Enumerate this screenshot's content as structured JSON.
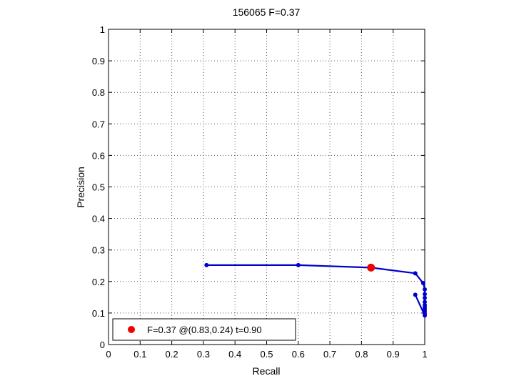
{
  "chart_data": {
    "type": "line",
    "title": "156065 F=0.37",
    "xlabel": "Recall",
    "ylabel": "Precision",
    "xlim": [
      0,
      1
    ],
    "ylim": [
      0,
      1
    ],
    "xticks": [
      "0",
      "0.1",
      "0.2",
      "0.3",
      "0.4",
      "0.5",
      "0.6",
      "0.7",
      "0.8",
      "0.9",
      "1"
    ],
    "yticks": [
      "0",
      "0.1",
      "0.2",
      "0.3",
      "0.4",
      "0.5",
      "0.6",
      "0.7",
      "0.8",
      "0.9",
      "1"
    ],
    "grid": true,
    "series": [
      {
        "color": "#0000cc",
        "x": [
          0.31,
          0.6,
          0.83,
          0.97,
          0.995,
          1.0,
          1.0,
          1.0,
          1.0,
          1.0,
          1.0,
          1.0,
          1.0,
          1.0,
          1.0,
          0.97
        ],
        "y": [
          0.252,
          0.252,
          0.244,
          0.226,
          0.195,
          0.175,
          0.16,
          0.148,
          0.135,
          0.125,
          0.118,
          0.112,
          0.105,
          0.098,
          0.092,
          0.158
        ]
      }
    ],
    "highlight": {
      "x": 0.83,
      "y": 0.244,
      "color": "#ee0000"
    },
    "legend": {
      "position": "bottom-left",
      "label": "F=0.37 @(0.83,0.24) t=0.90"
    }
  }
}
